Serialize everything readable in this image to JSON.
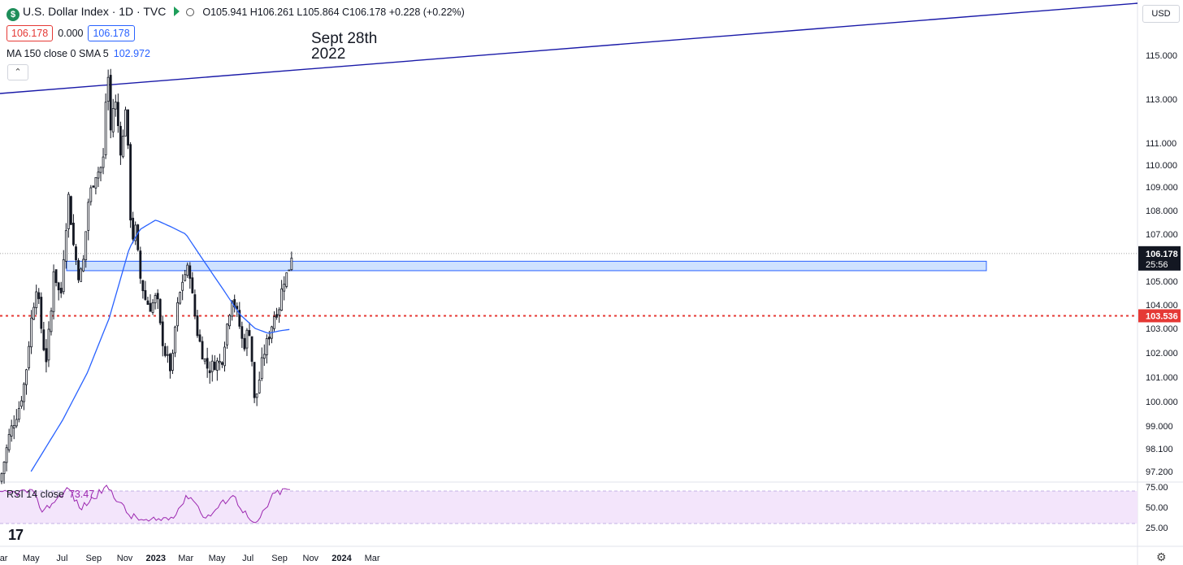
{
  "header": {
    "title": "U.S. Dollar Index · 1D · TVC",
    "logo_letter": "$",
    "ohlc": "O105.941 H106.261 L105.864 C106.178 +0.228 (+0.22%)",
    "bid": "106.178",
    "spread": "0.000",
    "ask": "106.178",
    "ma_label": "MA 150 close 0 SMA 5",
    "ma_value": "102.972",
    "collapse_glyph": "⌃"
  },
  "currency_button": "USD",
  "annotation": {
    "line1": "Sept 28th",
    "line2": "2022"
  },
  "rsi": {
    "label": "RSI 14 close",
    "value": "73.47"
  },
  "tv_logo": "17",
  "settings_glyph": "⚙",
  "colors": {
    "up": "#26a69a",
    "candle": "#131722",
    "ma": "#2962ff",
    "trendline": "#1a1aa8",
    "support": "#e53935",
    "zone_fill": "#cfe2ff",
    "zone_border": "#2962ff",
    "rsi_line": "#9c27b0",
    "rsi_band": "#f3e5fb"
  },
  "chart_data": {
    "type": "candlestick",
    "title": "U.S. Dollar Index · 1D · TVC",
    "x_axis": [
      "Mar",
      "May",
      "Jul",
      "Sep",
      "Nov",
      "2023",
      "Mar",
      "May",
      "Jul",
      "Sep",
      "Nov",
      "2024",
      "Mar"
    ],
    "y_ticks": [
      "115.000",
      "113.000",
      "111.000",
      "110.000",
      "109.000",
      "108.000",
      "107.000",
      "105.000",
      "104.000",
      "103.000",
      "102.000",
      "101.000",
      "100.000",
      "99.000",
      "98.100",
      "97.200"
    ],
    "last_price": "106.178",
    "countdown": "25:56",
    "support_level": "103.536",
    "resistance_zone": [
      105.45,
      105.85
    ],
    "price_path": [
      [
        "2022-03-01",
        96.8
      ],
      [
        "2022-03-20",
        98.7
      ],
      [
        "2022-04-08",
        99.8
      ],
      [
        "2022-04-20",
        101.0
      ],
      [
        "2022-05-01",
        103.3
      ],
      [
        "2022-05-12",
        104.9
      ],
      [
        "2022-05-20",
        103.2
      ],
      [
        "2022-05-30",
        101.6
      ],
      [
        "2022-06-10",
        103.8
      ],
      [
        "2022-06-14",
        105.6
      ],
      [
        "2022-06-28",
        104.2
      ],
      [
        "2022-07-05",
        106.5
      ],
      [
        "2022-07-14",
        108.7
      ],
      [
        "2022-07-22",
        106.7
      ],
      [
        "2022-08-02",
        105.3
      ],
      [
        "2022-08-10",
        105.4
      ],
      [
        "2022-08-22",
        108.5
      ],
      [
        "2022-09-05",
        109.6
      ],
      [
        "2022-09-14",
        109.8
      ],
      [
        "2022-09-20",
        110.3
      ],
      [
        "2022-09-28",
        114.8
      ],
      [
        "2022-10-04",
        111.5
      ],
      [
        "2022-10-12",
        113.2
      ],
      [
        "2022-10-18",
        112.0
      ],
      [
        "2022-10-26",
        110.2
      ],
      [
        "2022-11-02",
        112.9
      ],
      [
        "2022-11-08",
        110.4
      ],
      [
        "2022-11-14",
        106.7
      ],
      [
        "2022-11-22",
        107.2
      ],
      [
        "2022-12-01",
        105.2
      ],
      [
        "2022-12-12",
        104.2
      ],
      [
        "2022-12-22",
        103.9
      ],
      [
        "2023-01-03",
        104.4
      ],
      [
        "2023-01-10",
        103.0
      ],
      [
        "2023-01-18",
        102.1
      ],
      [
        "2023-02-01",
        101.2
      ],
      [
        "2023-02-10",
        103.6
      ],
      [
        "2023-02-24",
        105.2
      ],
      [
        "2023-03-08",
        105.6
      ],
      [
        "2023-03-15",
        104.1
      ],
      [
        "2023-03-24",
        102.8
      ],
      [
        "2023-04-05",
        101.8
      ],
      [
        "2023-04-14",
        101.3
      ],
      [
        "2023-04-28",
        101.6
      ],
      [
        "2023-05-10",
        101.6
      ],
      [
        "2023-05-22",
        103.3
      ],
      [
        "2023-05-31",
        104.4
      ],
      [
        "2023-06-12",
        103.4
      ],
      [
        "2023-06-22",
        102.2
      ],
      [
        "2023-07-03",
        103.1
      ],
      [
        "2023-07-07",
        102.3
      ],
      [
        "2023-07-14",
        99.9
      ],
      [
        "2023-07-20",
        100.5
      ],
      [
        "2023-07-31",
        101.9
      ],
      [
        "2023-08-10",
        102.6
      ],
      [
        "2023-08-22",
        103.6
      ],
      [
        "2023-08-31",
        103.9
      ],
      [
        "2023-09-08",
        105.0
      ],
      [
        "2023-09-18",
        105.4
      ],
      [
        "2023-09-25",
        106.178
      ]
    ],
    "ma150_path": [
      [
        "2022-05-01",
        97.2
      ],
      [
        "2022-07-01",
        99.2
      ],
      [
        "2022-08-20",
        101.2
      ],
      [
        "2022-10-01",
        103.4
      ],
      [
        "2022-10-25",
        105.2
      ],
      [
        "2022-11-10",
        106.4
      ],
      [
        "2022-12-01",
        107.2
      ],
      [
        "2023-01-01",
        107.6
      ],
      [
        "2023-02-01",
        107.3
      ],
      [
        "2023-03-01",
        107.0
      ],
      [
        "2023-04-01",
        106.0
      ],
      [
        "2023-05-15",
        104.6
      ],
      [
        "2023-06-15",
        103.6
      ],
      [
        "2023-07-15",
        103.0
      ],
      [
        "2023-08-10",
        102.8
      ],
      [
        "2023-09-01",
        102.9
      ],
      [
        "2023-09-25",
        102.972
      ]
    ],
    "rsi_series": {
      "name": "RSI 14 close",
      "y_ticks": [
        "75.00",
        "50.00",
        "25.00"
      ],
      "bands": [
        30,
        70
      ],
      "points": [
        [
          "2022-03-01",
          66
        ],
        [
          "2022-05-01",
          70
        ],
        [
          "2022-05-25",
          45
        ],
        [
          "2022-07-14",
          74
        ],
        [
          "2022-08-05",
          48
        ],
        [
          "2022-09-28",
          76
        ],
        [
          "2022-11-10",
          40
        ],
        [
          "2022-12-15",
          32
        ],
        [
          "2023-02-01",
          38
        ],
        [
          "2023-03-08",
          66
        ],
        [
          "2023-04-10",
          36
        ],
        [
          "2023-05-31",
          66
        ],
        [
          "2023-07-14",
          26
        ],
        [
          "2023-08-22",
          67
        ],
        [
          "2023-09-25",
          73.47
        ]
      ]
    }
  }
}
